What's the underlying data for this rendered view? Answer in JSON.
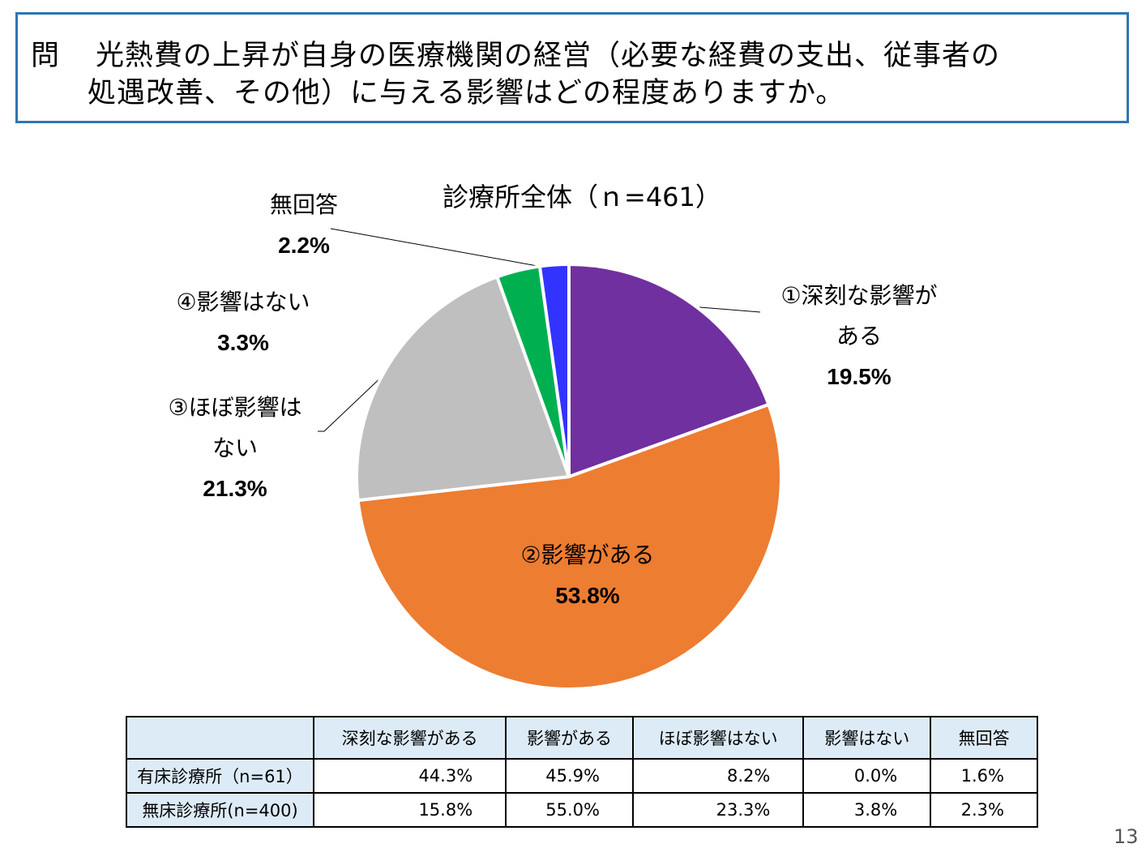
{
  "question": {
    "prefix": "問",
    "line1": "光熱費の上昇が自身の医療機関の経営（必要な経費の支出、従事者の",
    "line2": "処遇改善、その他）に与える影響はどの程度ありますか。"
  },
  "chart_data": {
    "type": "pie",
    "title": "診療所全体（ｎ=461）",
    "slices": [
      {
        "label_lines": [
          "①深刻な影響が",
          "ある"
        ],
        "value": 19.5,
        "value_label": "19.5%",
        "color": "#7030a0"
      },
      {
        "label_lines": [
          "②影響がある"
        ],
        "value": 53.8,
        "value_label": "53.8%",
        "color": "#ed7d31"
      },
      {
        "label_lines": [
          "③ほぼ影響は",
          "ない"
        ],
        "value": 21.3,
        "value_label": "21.3%",
        "color": "#bfbfbf"
      },
      {
        "label_lines": [
          "④影響はない"
        ],
        "value": 3.3,
        "value_label": "3.3%",
        "color": "#00b050"
      },
      {
        "label_lines": [
          "無回答"
        ],
        "value": 2.2,
        "value_label": "2.2%",
        "color": "#3333ff"
      }
    ]
  },
  "table": {
    "headers": [
      "",
      "深刻な影響がある",
      "影響がある",
      "ほぼ影響はない",
      "影響はない",
      "無回答"
    ],
    "rows": [
      {
        "label": "有床診療所（n=61）",
        "values": [
          "44.3%",
          "45.9%",
          "8.2%",
          "0.0%",
          "1.6%"
        ]
      },
      {
        "label": "無床診療所(n=400)",
        "values": [
          "15.8%",
          "55.0%",
          "23.3%",
          "3.8%",
          "2.3%"
        ]
      }
    ]
  },
  "page_number": "13"
}
